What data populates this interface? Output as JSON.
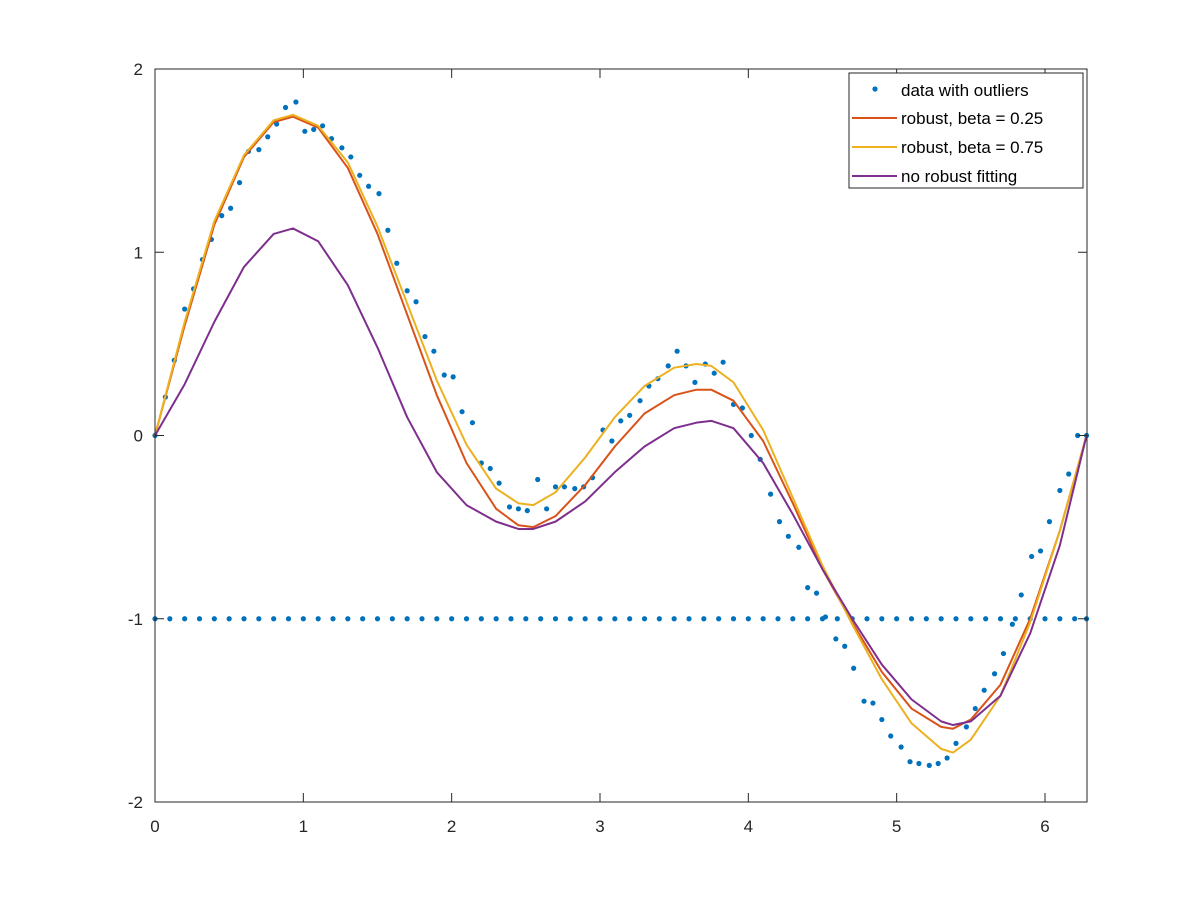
{
  "chart_data": {
    "type": "line",
    "title": "",
    "xlabel": "",
    "ylabel": "",
    "xlim": [
      0,
      6.2832
    ],
    "ylim": [
      -2,
      2
    ],
    "xticks": [
      0,
      1,
      2,
      3,
      4,
      5,
      6
    ],
    "yticks": [
      -2,
      -1,
      0,
      1,
      2
    ],
    "xtick_labels": [
      "0",
      "1",
      "2",
      "3",
      "4",
      "5",
      "6"
    ],
    "ytick_labels": [
      "-2",
      "-1",
      "0",
      "1",
      "2"
    ],
    "grid": false,
    "legend_position": "top-right",
    "legend": [
      {
        "name": "data with outliers",
        "kind": "marker",
        "color": "#0072BD"
      },
      {
        "name": "robust, beta = 0.25",
        "kind": "line",
        "color": "#D95319"
      },
      {
        "name": "robust, beta = 0.75",
        "kind": "line",
        "color": "#EDB120"
      },
      {
        "name": "no robust fitting",
        "kind": "line",
        "color": "#7E2F8E"
      }
    ],
    "series": [
      {
        "name": "data with outliers",
        "kind": "scatter",
        "color": "#0072BD",
        "x": [
          0.0,
          0.07,
          0.13,
          0.2,
          0.26,
          0.32,
          0.38,
          0.45,
          0.51,
          0.57,
          0.63,
          0.7,
          0.76,
          0.82,
          0.88,
          0.95,
          1.01,
          1.07,
          1.13,
          1.19,
          1.26,
          1.32,
          1.38,
          1.44,
          1.51,
          1.57,
          1.63,
          1.7,
          1.76,
          1.82,
          1.88,
          1.95,
          2.01,
          2.07,
          2.14,
          2.2,
          2.26,
          2.32,
          2.39,
          2.45,
          2.51,
          2.58,
          2.64,
          2.7,
          2.76,
          2.83,
          2.89,
          2.95,
          3.02,
          3.08,
          3.14,
          3.2,
          3.27,
          3.33,
          3.39,
          3.46,
          3.52,
          3.58,
          3.64,
          3.71,
          3.77,
          3.83,
          3.9,
          3.96,
          4.02,
          4.08,
          4.15,
          4.21,
          4.27,
          4.34,
          4.4,
          4.46,
          4.52,
          4.59,
          4.65,
          4.71,
          4.78,
          4.84,
          4.9,
          4.96,
          5.03,
          5.09,
          5.15,
          5.22,
          5.28,
          5.34,
          5.4,
          5.47,
          5.53,
          5.59,
          5.66,
          5.72,
          5.78,
          5.84,
          5.91,
          5.97,
          6.03,
          6.1,
          6.16,
          6.22,
          6.28
        ],
        "y": [
          0.0,
          0.21,
          0.41,
          0.69,
          0.8,
          0.96,
          1.07,
          1.2,
          1.24,
          1.38,
          1.55,
          1.56,
          1.63,
          1.7,
          1.79,
          1.82,
          1.66,
          1.67,
          1.69,
          1.62,
          1.57,
          1.52,
          1.42,
          1.36,
          1.32,
          1.12,
          0.94,
          0.79,
          0.73,
          0.54,
          0.46,
          0.33,
          0.32,
          0.13,
          0.07,
          -0.15,
          -0.18,
          -0.26,
          -0.39,
          -0.4,
          -0.41,
          -0.24,
          -0.4,
          -0.28,
          -0.28,
          -0.29,
          -0.28,
          -0.23,
          0.03,
          -0.03,
          0.08,
          0.11,
          0.19,
          0.27,
          0.31,
          0.38,
          0.46,
          0.38,
          0.29,
          0.39,
          0.34,
          0.4,
          0.17,
          0.15,
          0.0,
          -0.13,
          -0.32,
          -0.47,
          -0.55,
          -0.61,
          -0.83,
          -0.86,
          -0.99,
          -1.11,
          -1.15,
          -1.27,
          -1.45,
          -1.46,
          -1.55,
          -1.64,
          -1.7,
          -1.78,
          -1.79,
          -1.8,
          -1.79,
          -1.76,
          -1.68,
          -1.59,
          -1.49,
          -1.39,
          -1.3,
          -1.19,
          -1.03,
          -0.87,
          -0.66,
          -0.63,
          -0.47,
          -0.3,
          -0.21,
          0.0,
          0.0
        ]
      },
      {
        "name": "data with outliers (outlier row)",
        "kind": "scatter",
        "color": "#0072BD",
        "x": [
          0.0,
          0.1,
          0.2,
          0.3,
          0.4,
          0.5,
          0.6,
          0.7,
          0.8,
          0.9,
          1.0,
          1.1,
          1.2,
          1.3,
          1.4,
          1.5,
          1.6,
          1.7,
          1.8,
          1.9,
          2.0,
          2.1,
          2.2,
          2.3,
          2.4,
          2.5,
          2.6,
          2.7,
          2.8,
          2.9,
          3.0,
          3.1,
          3.2,
          3.3,
          3.4,
          3.5,
          3.6,
          3.7,
          3.8,
          3.9,
          4.0,
          4.1,
          4.2,
          4.3,
          4.4,
          4.5,
          4.6,
          4.7,
          4.8,
          4.9,
          5.0,
          5.1,
          5.2,
          5.3,
          5.4,
          5.5,
          5.6,
          5.7,
          5.8,
          5.9,
          6.0,
          6.1,
          6.2,
          6.28
        ],
        "y": [
          -1,
          -1,
          -1,
          -1,
          -1,
          -1,
          -1,
          -1,
          -1,
          -1,
          -1,
          -1,
          -1,
          -1,
          -1,
          -1,
          -1,
          -1,
          -1,
          -1,
          -1,
          -1,
          -1,
          -1,
          -1,
          -1,
          -1,
          -1,
          -1,
          -1,
          -1,
          -1,
          -1,
          -1,
          -1,
          -1,
          -1,
          -1,
          -1,
          -1,
          -1,
          -1,
          -1,
          -1,
          -1,
          -1,
          -1,
          -1,
          -1,
          -1,
          -1,
          -1,
          -1,
          -1,
          -1,
          -1,
          -1,
          -1,
          -1,
          -1,
          -1,
          -1,
          -1,
          -1
        ]
      },
      {
        "name": "robust, beta = 0.25",
        "kind": "line",
        "color": "#D95319",
        "x": [
          0.0,
          0.2,
          0.4,
          0.6,
          0.8,
          0.93,
          1.1,
          1.3,
          1.5,
          1.7,
          1.9,
          2.1,
          2.3,
          2.45,
          2.55,
          2.7,
          2.9,
          3.1,
          3.3,
          3.5,
          3.65,
          3.75,
          3.9,
          4.1,
          4.3,
          4.5,
          4.7,
          4.9,
          5.1,
          5.3,
          5.38,
          5.5,
          5.7,
          5.9,
          6.1,
          6.28
        ],
        "y": [
          0.0,
          0.6,
          1.15,
          1.52,
          1.71,
          1.74,
          1.68,
          1.46,
          1.1,
          0.66,
          0.22,
          -0.15,
          -0.4,
          -0.49,
          -0.5,
          -0.44,
          -0.27,
          -0.06,
          0.12,
          0.22,
          0.25,
          0.25,
          0.19,
          -0.03,
          -0.37,
          -0.73,
          -1.02,
          -1.29,
          -1.49,
          -1.59,
          -1.6,
          -1.55,
          -1.36,
          -1.0,
          -0.52,
          0.0
        ]
      },
      {
        "name": "robust, beta = 0.75",
        "kind": "line",
        "color": "#EDB120",
        "x": [
          0.0,
          0.2,
          0.4,
          0.6,
          0.8,
          0.93,
          1.1,
          1.3,
          1.5,
          1.7,
          1.9,
          2.1,
          2.3,
          2.45,
          2.55,
          2.7,
          2.9,
          3.1,
          3.3,
          3.5,
          3.65,
          3.75,
          3.9,
          4.1,
          4.3,
          4.5,
          4.7,
          4.9,
          5.1,
          5.3,
          5.38,
          5.5,
          5.7,
          5.9,
          6.1,
          6.28
        ],
        "y": [
          0.0,
          0.62,
          1.17,
          1.53,
          1.72,
          1.75,
          1.69,
          1.49,
          1.14,
          0.72,
          0.3,
          -0.05,
          -0.29,
          -0.37,
          -0.38,
          -0.31,
          -0.12,
          0.1,
          0.27,
          0.37,
          0.39,
          0.38,
          0.29,
          0.03,
          -0.34,
          -0.71,
          -1.03,
          -1.33,
          -1.57,
          -1.71,
          -1.73,
          -1.66,
          -1.42,
          -1.02,
          -0.52,
          0.0
        ]
      },
      {
        "name": "no robust fitting",
        "kind": "line",
        "color": "#7E2F8E",
        "x": [
          0.0,
          0.2,
          0.4,
          0.6,
          0.8,
          0.93,
          1.1,
          1.3,
          1.5,
          1.7,
          1.9,
          2.1,
          2.3,
          2.45,
          2.55,
          2.7,
          2.9,
          3.1,
          3.3,
          3.5,
          3.65,
          3.75,
          3.9,
          4.1,
          4.3,
          4.5,
          4.7,
          4.9,
          5.1,
          5.3,
          5.38,
          5.5,
          5.7,
          5.9,
          6.1,
          6.28
        ],
        "y": [
          0.0,
          0.28,
          0.62,
          0.92,
          1.1,
          1.13,
          1.06,
          0.82,
          0.48,
          0.1,
          -0.2,
          -0.38,
          -0.47,
          -0.51,
          -0.51,
          -0.47,
          -0.36,
          -0.2,
          -0.06,
          0.04,
          0.07,
          0.08,
          0.04,
          -0.15,
          -0.43,
          -0.73,
          -1.0,
          -1.25,
          -1.44,
          -1.56,
          -1.58,
          -1.56,
          -1.42,
          -1.08,
          -0.6,
          0.0
        ]
      }
    ]
  }
}
